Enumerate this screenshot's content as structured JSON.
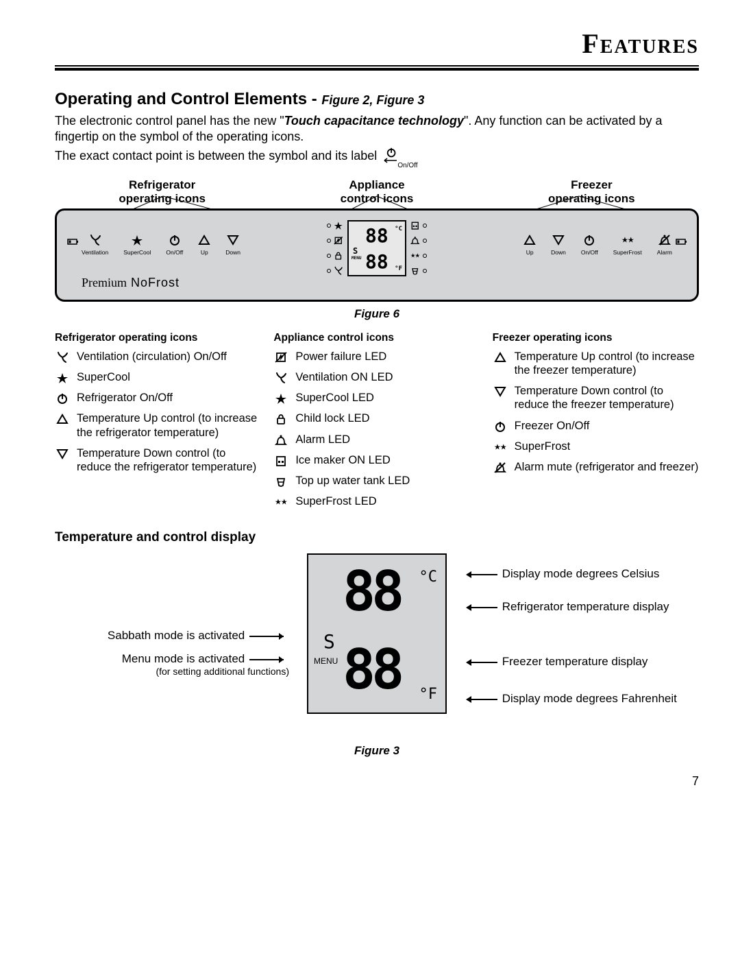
{
  "header": {
    "title": "Features"
  },
  "section": {
    "heading": "Operating and Control Elements - ",
    "heading_figref": "Figure 2, Figure 3",
    "p1a": "The electronic control panel has the new \"",
    "p1b": "Touch capacitance technology",
    "p1c": "\". Any function can be activated by a fingertip on the symbol of the operating icons.",
    "p2": "The exact contact point is between the symbol and its label",
    "inline_icon_label": "On/Off"
  },
  "col_headers": {
    "left": "Refrigerator\noperating icons",
    "mid": "Appliance\ncontrol icons",
    "right": "Freezer\noperating icons"
  },
  "panel": {
    "premium_a": "Premium",
    "premium_b": " NoFrost",
    "left_icons": [
      {
        "name": "ventilation-icon",
        "lbl": "Ventilation"
      },
      {
        "name": "supercool-icon",
        "lbl": "SuperCool"
      },
      {
        "name": "power-icon",
        "lbl": "On/Off"
      },
      {
        "name": "up-icon",
        "lbl": "Up"
      },
      {
        "name": "down-icon",
        "lbl": "Down"
      }
    ],
    "right_icons": [
      {
        "name": "up-icon",
        "lbl": "Up"
      },
      {
        "name": "down-icon",
        "lbl": "Down"
      },
      {
        "name": "power-icon",
        "lbl": "On/Off"
      },
      {
        "name": "superfrost-icon",
        "lbl": "SuperFrost"
      },
      {
        "name": "alarm-icon",
        "lbl": "Alarm"
      }
    ],
    "disp_top": "88",
    "disp_bot": "88",
    "disp_c": "°C",
    "disp_f": "°F",
    "disp_s": "S",
    "disp_menu": "MENU"
  },
  "fig6_caption": "Figure 6",
  "legend": {
    "col1_title": "Refrigerator operating icons",
    "col1": [
      {
        "icon": "ventilation-icon",
        "text": "Ventilation (circulation) On/Off"
      },
      {
        "icon": "supercool-icon",
        "text": "SuperCool"
      },
      {
        "icon": "power-icon",
        "text": "Refrigerator On/Off"
      },
      {
        "icon": "up-icon",
        "text": "Temperature Up control (to increase the refrigerator temperature)"
      },
      {
        "icon": "down-icon",
        "text": "Temperature Down control (to reduce the refrigerator temperature)"
      }
    ],
    "col2_title": "Appliance control icons",
    "col2": [
      {
        "icon": "powerfail-icon",
        "text": "Power failure LED"
      },
      {
        "icon": "ventilation-icon",
        "text": "Ventilation ON LED"
      },
      {
        "icon": "supercool-icon",
        "text": "SuperCool LED"
      },
      {
        "icon": "childlock-icon",
        "text": "Child lock LED"
      },
      {
        "icon": "alarm-led-icon",
        "text": "Alarm LED"
      },
      {
        "icon": "icemaker-icon",
        "text": "Ice maker ON LED"
      },
      {
        "icon": "water-icon",
        "text": "Top up water tank LED"
      },
      {
        "icon": "superfrost-icon",
        "text": "SuperFrost LED"
      }
    ],
    "col3_title": "Freezer operating icons",
    "col3": [
      {
        "icon": "up-icon",
        "text": "Temperature Up control (to increase the freezer temperature)"
      },
      {
        "icon": "down-icon",
        "text": "Temperature Down control (to reduce the freezer temperature)"
      },
      {
        "icon": "power-icon",
        "text": "Freezer On/Off"
      },
      {
        "icon": "superfrost-icon",
        "text": "SuperFrost"
      },
      {
        "icon": "alarm-mute-icon",
        "text": "Alarm mute (refrigerator and freezer)"
      }
    ]
  },
  "temp_section_title": "Temperature and control display",
  "temp_fig": {
    "left1": "Sabbath mode is activated",
    "left2": "Menu mode is activated",
    "left2_sub": "(for setting additional functions)",
    "right1": "Display mode degrees Celsius",
    "right2": "Refrigerator temperature display",
    "right3": "Freezer temperature display",
    "right4": "Display mode degrees Fahrenheit",
    "seg": "88",
    "c": "°C",
    "f": "°F",
    "s": "S",
    "menu": "MENU"
  },
  "fig3_caption": "Figure 3",
  "page_number": "7"
}
